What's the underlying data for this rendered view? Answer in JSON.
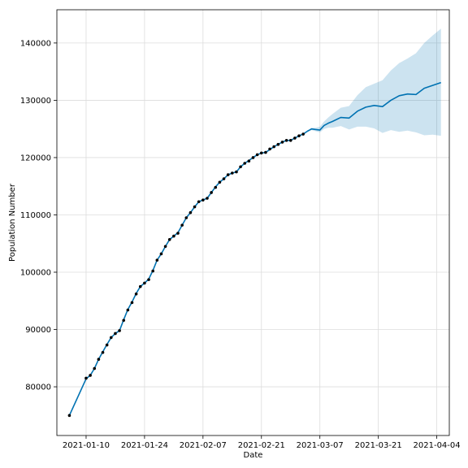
{
  "chart_data": {
    "type": "line",
    "title": "",
    "xlabel": "Date",
    "ylabel": "Population Number",
    "x_ticks": [
      "2021-01-10",
      "2021-01-24",
      "2021-02-07",
      "2021-02-21",
      "2021-03-07",
      "2021-03-21",
      "2021-04-04"
    ],
    "y_ticks": [
      80000,
      90000,
      100000,
      110000,
      120000,
      130000,
      140000
    ],
    "xlim": [
      "2021-01-03",
      "2021-04-07"
    ],
    "ylim": [
      71500,
      145800
    ],
    "grid": true,
    "legend": "none",
    "colors": {
      "forecast_line": "#0072B2",
      "uncertainty_band": "#0072B2",
      "observed_points": "#000000"
    },
    "observed": {
      "name": "",
      "x": [
        "2021-01-06",
        "2021-01-10",
        "2021-01-11",
        "2021-01-12",
        "2021-01-13",
        "2021-01-14",
        "2021-01-15",
        "2021-01-16",
        "2021-01-17",
        "2021-01-18",
        "2021-01-19",
        "2021-01-20",
        "2021-01-21",
        "2021-01-22",
        "2021-01-23",
        "2021-01-24",
        "2021-01-25",
        "2021-01-26",
        "2021-01-27",
        "2021-01-28",
        "2021-01-29",
        "2021-01-30",
        "2021-01-31",
        "2021-02-01",
        "2021-02-02",
        "2021-02-03",
        "2021-02-04",
        "2021-02-05",
        "2021-02-06",
        "2021-02-07",
        "2021-02-08",
        "2021-02-09",
        "2021-02-10",
        "2021-02-11",
        "2021-02-12",
        "2021-02-13",
        "2021-02-14",
        "2021-02-15",
        "2021-02-16",
        "2021-02-17",
        "2021-02-18",
        "2021-02-19",
        "2021-02-20",
        "2021-02-21",
        "2021-02-22",
        "2021-02-23",
        "2021-02-24",
        "2021-02-25",
        "2021-02-26",
        "2021-02-27",
        "2021-02-28",
        "2021-03-01",
        "2021-03-02",
        "2021-03-03"
      ],
      "values": [
        75000,
        81500,
        82000,
        83200,
        84800,
        86000,
        87300,
        88600,
        89300,
        89800,
        91600,
        93400,
        94700,
        96200,
        97500,
        98100,
        98700,
        100200,
        102100,
        103200,
        104500,
        105700,
        106300,
        106800,
        108200,
        109500,
        110400,
        111400,
        112300,
        112600,
        112900,
        113900,
        114800,
        115700,
        116300,
        117000,
        117300,
        117500,
        118400,
        119000,
        119400,
        120000,
        120500,
        120800,
        120900,
        121500,
        121900,
        122300,
        122700,
        123000,
        123000,
        123400,
        123800,
        124100
      ]
    },
    "forecast": {
      "name": "",
      "x": [
        "2021-01-06",
        "2021-01-10",
        "2021-01-11",
        "2021-01-12",
        "2021-01-13",
        "2021-01-14",
        "2021-01-15",
        "2021-01-16",
        "2021-01-17",
        "2021-01-18",
        "2021-01-19",
        "2021-01-20",
        "2021-01-21",
        "2021-01-22",
        "2021-01-23",
        "2021-01-24",
        "2021-01-25",
        "2021-01-26",
        "2021-01-27",
        "2021-01-28",
        "2021-01-29",
        "2021-01-30",
        "2021-01-31",
        "2021-02-01",
        "2021-02-02",
        "2021-02-03",
        "2021-02-04",
        "2021-02-05",
        "2021-02-06",
        "2021-02-07",
        "2021-02-08",
        "2021-02-09",
        "2021-02-10",
        "2021-02-11",
        "2021-02-12",
        "2021-02-13",
        "2021-02-14",
        "2021-02-15",
        "2021-02-16",
        "2021-02-17",
        "2021-02-18",
        "2021-02-19",
        "2021-02-20",
        "2021-02-21",
        "2021-02-22",
        "2021-02-23",
        "2021-02-24",
        "2021-02-25",
        "2021-02-26",
        "2021-02-27",
        "2021-02-28",
        "2021-03-01",
        "2021-03-02",
        "2021-03-03",
        "2021-03-04",
        "2021-03-05",
        "2021-03-06",
        "2021-03-07",
        "2021-03-08",
        "2021-03-09",
        "2021-03-10",
        "2021-03-12",
        "2021-03-14",
        "2021-03-16",
        "2021-03-18",
        "2021-03-20",
        "2021-03-22",
        "2021-03-24",
        "2021-03-26",
        "2021-03-28",
        "2021-03-30",
        "2021-04-01",
        "2021-04-03",
        "2021-04-05"
      ],
      "values": [
        75000,
        81400,
        82000,
        83200,
        84800,
        86100,
        87400,
        88600,
        89300,
        89800,
        91700,
        93500,
        94800,
        96300,
        97500,
        98100,
        98800,
        100300,
        102100,
        103200,
        104500,
        105700,
        106300,
        106900,
        108200,
        109500,
        110400,
        111400,
        112300,
        112600,
        112900,
        113900,
        114900,
        115700,
        116300,
        117000,
        117300,
        117500,
        118400,
        119000,
        119500,
        120000,
        120500,
        120800,
        120900,
        121400,
        121900,
        122300,
        122700,
        123000,
        123000,
        123400,
        123800,
        124100,
        124600,
        125000,
        124900,
        124800,
        125600,
        126000,
        126300,
        127000,
        126900,
        128100,
        128800,
        129100,
        128900,
        130000,
        130800,
        131100,
        131000,
        132100,
        132600,
        133100
      ],
      "lower": [
        75000,
        81400,
        82000,
        83200,
        84800,
        86100,
        87400,
        88600,
        89300,
        89800,
        91700,
        93500,
        94800,
        96300,
        97500,
        98100,
        98800,
        100300,
        102100,
        103200,
        104500,
        105700,
        106300,
        106900,
        108200,
        109500,
        110400,
        111400,
        112300,
        112600,
        112900,
        113900,
        114900,
        115700,
        116300,
        117000,
        117300,
        117500,
        118400,
        119000,
        119500,
        120000,
        120500,
        120800,
        120900,
        121400,
        121900,
        122300,
        122700,
        123000,
        123000,
        123400,
        123800,
        124100,
        124500,
        124800,
        124600,
        124400,
        125000,
        125200,
        125200,
        125500,
        124900,
        125400,
        125400,
        125100,
        124300,
        124800,
        124500,
        124700,
        124400,
        123900,
        124000,
        123800
      ],
      "upper": [
        75000,
        81400,
        82000,
        83200,
        84800,
        86100,
        87400,
        88600,
        89300,
        89800,
        91700,
        93500,
        94800,
        96300,
        97500,
        98100,
        98800,
        100300,
        102100,
        103200,
        104500,
        105700,
        106300,
        106900,
        108200,
        109500,
        110400,
        111400,
        112300,
        112600,
        112900,
        113900,
        114900,
        115700,
        116300,
        117000,
        117300,
        117500,
        118400,
        119000,
        119500,
        120000,
        120500,
        120800,
        120900,
        121400,
        121900,
        122300,
        122700,
        123000,
        123000,
        123400,
        123800,
        124100,
        124700,
        125200,
        125200,
        125400,
        126300,
        127000,
        127600,
        128700,
        129000,
        130900,
        132300,
        132900,
        133500,
        135200,
        136500,
        137300,
        138200,
        140000,
        141300,
        142500
      ]
    }
  }
}
